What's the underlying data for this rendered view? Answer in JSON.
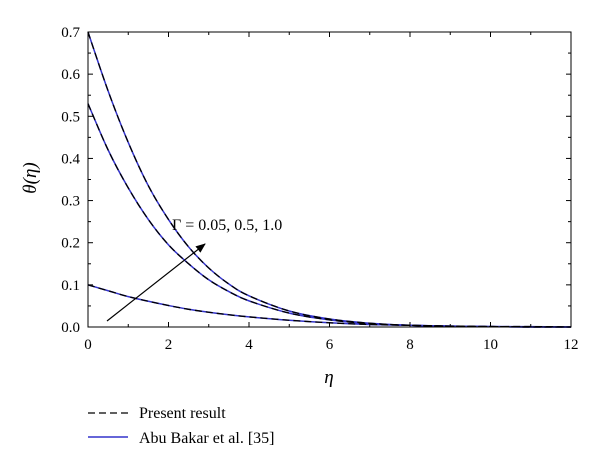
{
  "chart_data": {
    "type": "line",
    "title": "",
    "xlabel": "η",
    "ylabel": "θ(η)",
    "xlim": [
      0,
      12
    ],
    "ylim": [
      0,
      0.7
    ],
    "x_ticks": [
      "0",
      "2",
      "4",
      "6",
      "8",
      "10",
      "12"
    ],
    "y_ticks": [
      "0.0",
      "0.1",
      "0.2",
      "0.3",
      "0.4",
      "0.5",
      "0.6",
      "0.7"
    ],
    "grid": false,
    "legend_position": "bottom-left",
    "annotation": "Γ = 0.05, 0.5, 1.0",
    "colors": {
      "present": "#000000",
      "abu_bakar": "#3333cc"
    },
    "x": [
      0,
      0.5,
      1,
      1.5,
      2,
      2.5,
      3,
      3.5,
      4,
      5,
      6,
      7,
      8,
      9,
      10,
      11,
      12
    ],
    "series": [
      {
        "name": "Present result",
        "style": "dashed",
        "curves": [
          [
            0.1,
            0.086,
            0.072,
            0.061,
            0.051,
            0.042,
            0.035,
            0.029,
            0.024,
            0.016,
            0.01,
            0.006,
            0.004,
            0.002,
            0.001,
            0.001,
            0.0
          ],
          [
            0.53,
            0.42,
            0.33,
            0.255,
            0.195,
            0.15,
            0.112,
            0.084,
            0.062,
            0.033,
            0.017,
            0.008,
            0.004,
            0.002,
            0.001,
            0.0,
            0.0
          ],
          [
            0.7,
            0.56,
            0.438,
            0.335,
            0.255,
            0.19,
            0.14,
            0.102,
            0.074,
            0.038,
            0.019,
            0.009,
            0.004,
            0.002,
            0.001,
            0.0,
            0.0
          ]
        ]
      },
      {
        "name": "Abu Bakar et al. [35]",
        "style": "solid",
        "curves": [
          [
            0.1,
            0.086,
            0.072,
            0.061,
            0.051,
            0.042,
            0.035,
            0.029,
            0.024,
            0.016,
            0.01,
            0.006,
            0.004,
            0.002,
            0.001,
            0.001,
            0.0
          ],
          [
            0.53,
            0.42,
            0.33,
            0.255,
            0.195,
            0.15,
            0.112,
            0.084,
            0.062,
            0.033,
            0.017,
            0.008,
            0.004,
            0.002,
            0.001,
            0.0,
            0.0
          ],
          [
            0.7,
            0.56,
            0.438,
            0.335,
            0.255,
            0.19,
            0.14,
            0.102,
            0.074,
            0.038,
            0.019,
            0.009,
            0.004,
            0.002,
            0.001,
            0.0,
            0.0
          ]
        ]
      }
    ]
  }
}
